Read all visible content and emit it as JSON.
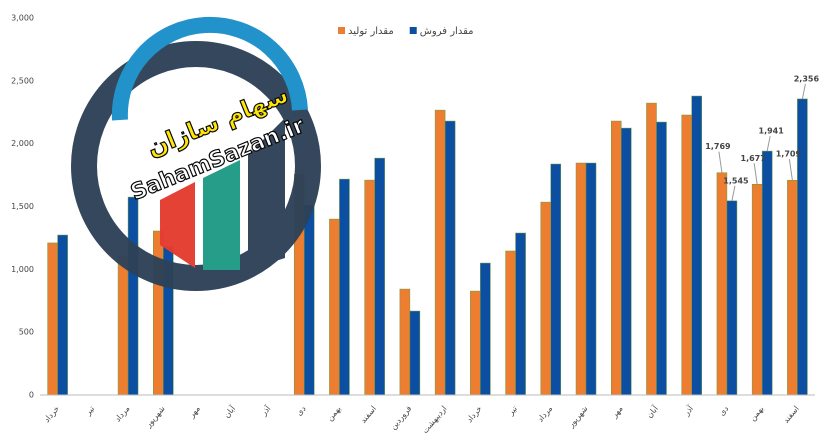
{
  "chart_data": {
    "type": "bar",
    "categories": [
      "خرداد",
      "تیر",
      "مرداد",
      "شهریور",
      "مهر",
      "آبان",
      "آذر",
      "دی",
      "بهمن",
      "اسفند",
      "فروردین",
      "اردیبهشت",
      "خرداد",
      "تیر",
      "مرداد",
      "شهریور",
      "مهر",
      "آبان",
      "آذر",
      "دی",
      "بهمن",
      "اسفند"
    ],
    "series": [
      {
        "name": "مقدار تولید",
        "color": "#ED7D31",
        "values": [
          1210,
          null,
          1100,
          1305,
          null,
          null,
          null,
          1758,
          1400,
          1710,
          843,
          2267,
          827,
          1146,
          1535,
          1846,
          2180,
          2323,
          2228,
          1769,
          1677,
          1709
        ],
        "value_labels": [
          null,
          null,
          null,
          null,
          null,
          null,
          null,
          null,
          null,
          null,
          null,
          null,
          null,
          null,
          null,
          null,
          null,
          null,
          null,
          "1,769",
          "1,677",
          "1,709"
        ]
      },
      {
        "name": "مقدار فروش",
        "color": "#0B4EA2",
        "values": [
          1273,
          null,
          1575,
          1185,
          null,
          null,
          null,
          1511,
          1718,
          1885,
          668,
          2180,
          1050,
          1289,
          1838,
          1846,
          2124,
          2172,
          2379,
          1545,
          1941,
          2356
        ],
        "value_labels": [
          null,
          null,
          null,
          null,
          null,
          null,
          null,
          null,
          null,
          null,
          null,
          null,
          null,
          null,
          null,
          null,
          null,
          null,
          null,
          "1,545",
          "1,941",
          "2,356"
        ]
      }
    ],
    "ylim": [
      0,
      3000
    ],
    "yticks": [
      0,
      500,
      {
        "value": 1000,
        "label": "1,000"
      },
      {
        "value": 1500,
        "label": "1,500"
      },
      {
        "value": 2000,
        "label": "2,000"
      },
      {
        "value": 2500,
        "label": "2,500"
      },
      {
        "value": 3000,
        "label": "3,000"
      }
    ],
    "grid": false,
    "legend": "top"
  },
  "watermark": {
    "title": "سهام سازان",
    "url": "SahamSazan.ir"
  }
}
